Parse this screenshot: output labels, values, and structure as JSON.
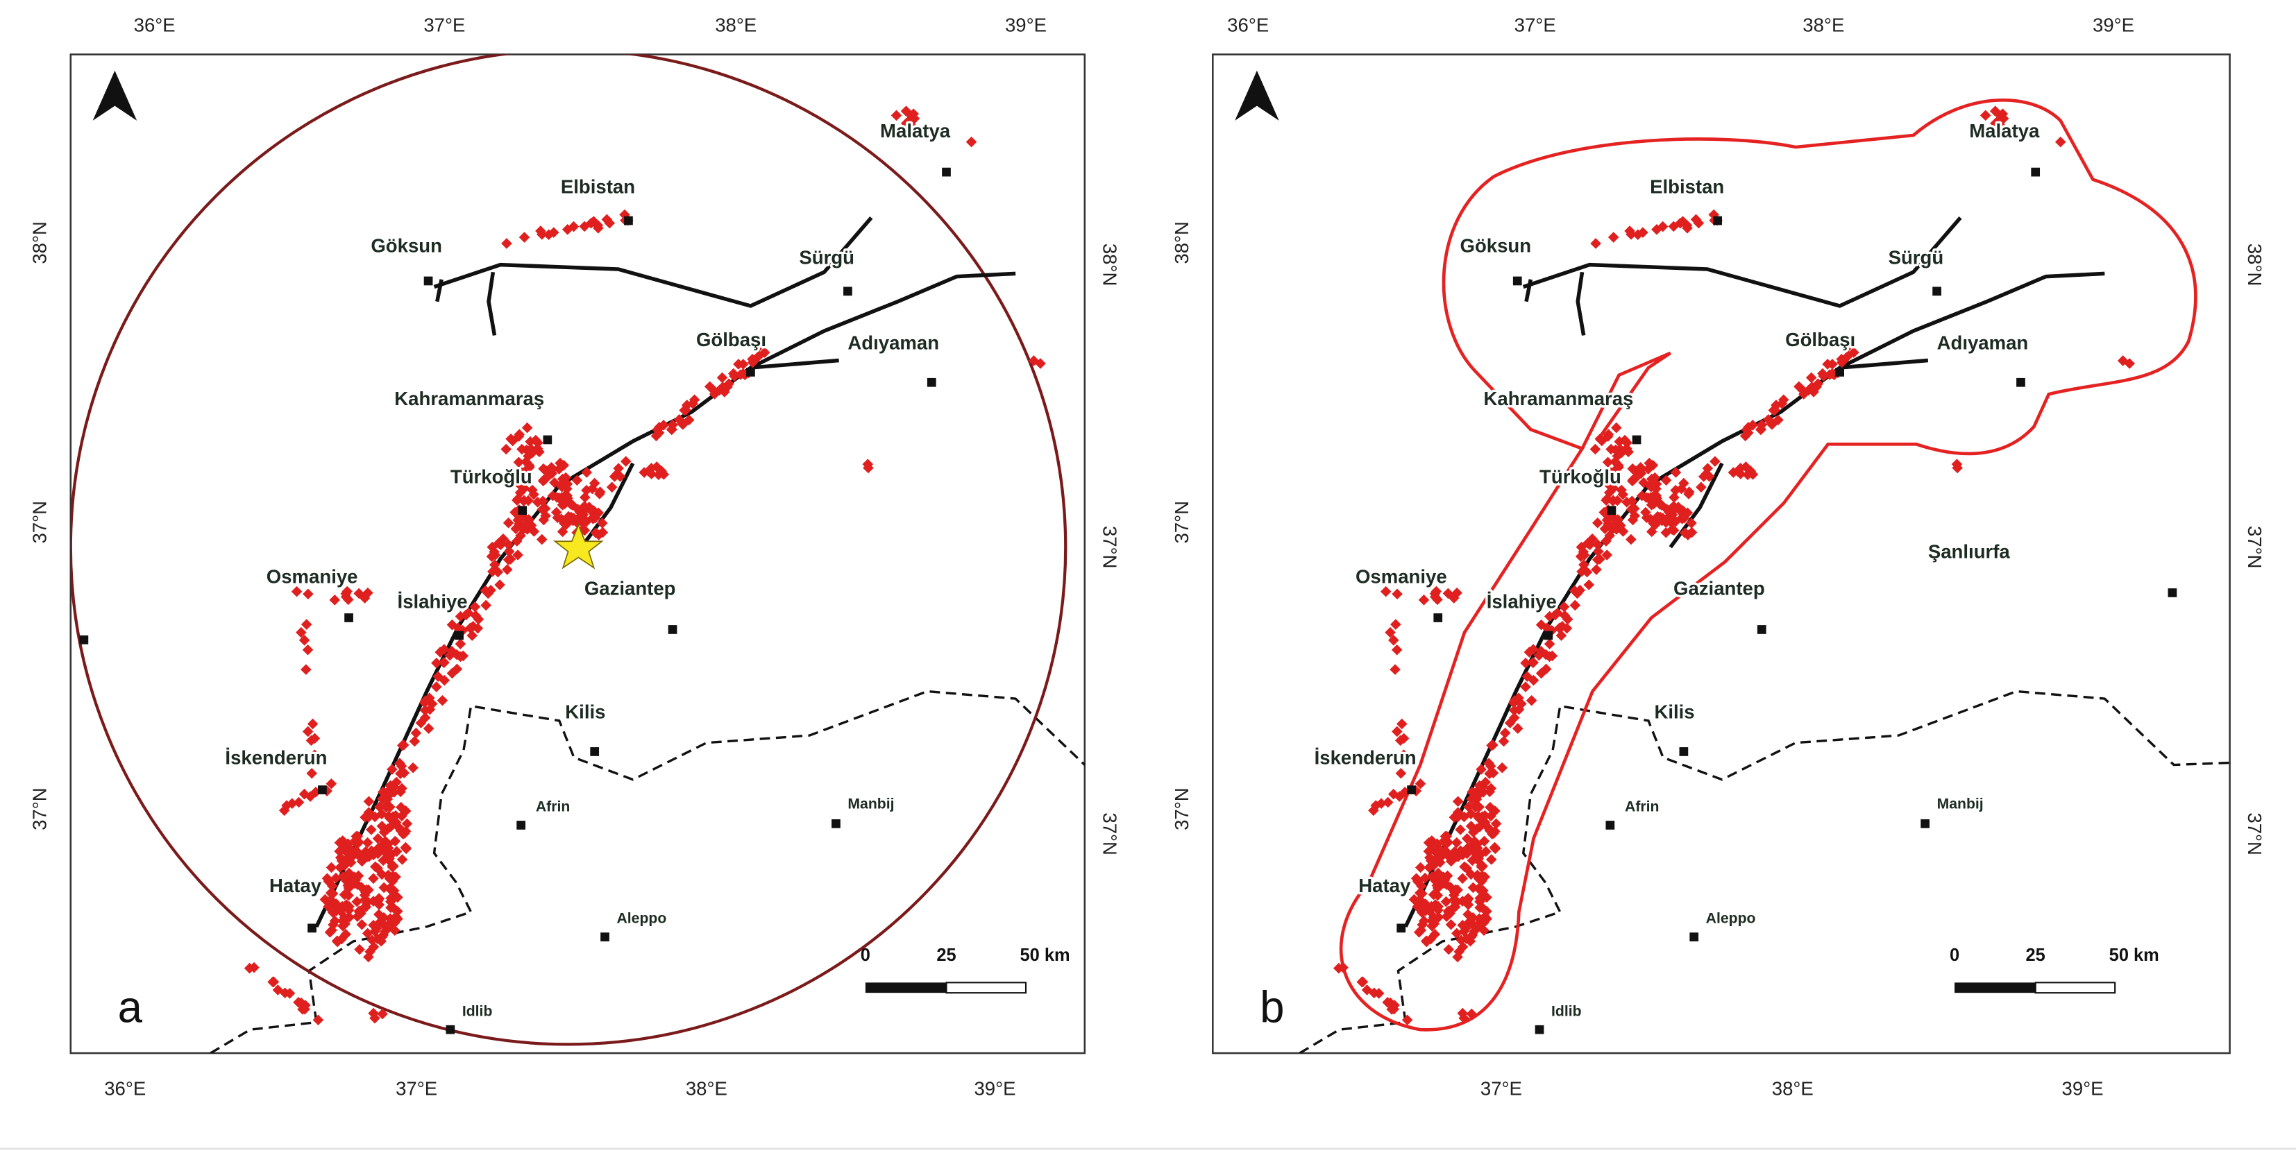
{
  "panels": [
    {
      "label": "a",
      "top_ticks": [
        "36°E",
        "37°E",
        "38°E",
        "39°E"
      ],
      "bottom_ticks": [
        "36°E",
        "37°E",
        "38°E",
        "39°E"
      ],
      "left_ticks": [
        "38°N",
        "37°N",
        "37°N"
      ],
      "right_ticks": [
        "38°N",
        "37°N",
        "37°N"
      ],
      "cities": [
        "Malatya",
        "Elbistan",
        "Göksun",
        "Sürgü",
        "Gölbaşı",
        "Adıyaman",
        "Kahramanmaraş",
        "Türkoğlu",
        "Osmaniye",
        "Gaziantep",
        "İslahiye",
        "Kilis",
        "İskenderun",
        "Afrin",
        "Manbij",
        "Hatay",
        "Aleppo",
        "Idlib"
      ],
      "scale_labels": [
        "0",
        "25",
        "50 km"
      ]
    },
    {
      "label": "b",
      "top_ticks": [
        "36°E",
        "37°E",
        "38°E",
        "39°E"
      ],
      "bottom_ticks": [
        "37°E",
        "38°E",
        "39°E"
      ],
      "left_ticks": [
        "38°N",
        "37°N",
        "37°N"
      ],
      "right_ticks": [
        "38°N",
        "37°N",
        "37°N"
      ],
      "cities": [
        "Malatya",
        "Elbistan",
        "Göksun",
        "Sürgü",
        "Gölbaşı",
        "Adıyaman",
        "Kahramanmaraş",
        "Türkoğlu",
        "Osmaniye",
        "Gaziantep",
        "İslahiye",
        "Kilis",
        "İskenderun",
        "Afrin",
        "Manbij",
        "Hatay",
        "Aleppo",
        "Idlib",
        "Şanlıurfa"
      ],
      "scale_labels": [
        "0",
        "25",
        "50 km"
      ]
    }
  ]
}
